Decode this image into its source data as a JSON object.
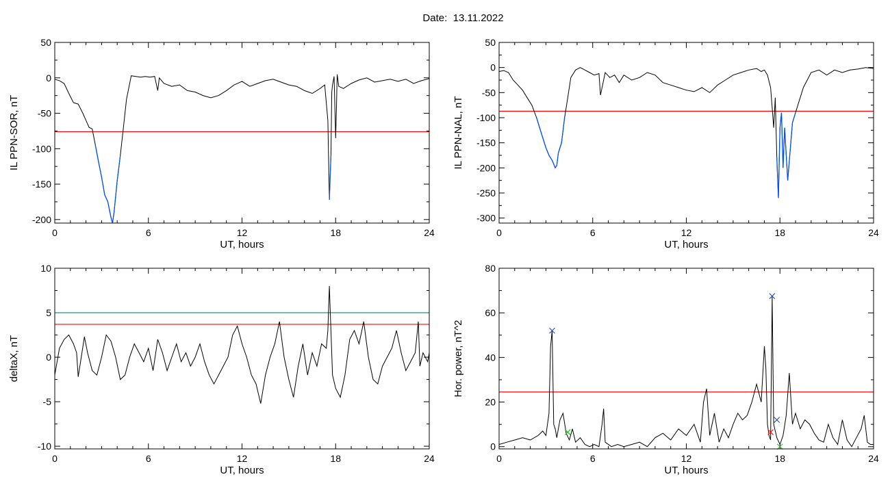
{
  "title": "Date:  13.11.2022",
  "chart_data": [
    {
      "type": "line",
      "xlabel": "UT, hours",
      "ylabel": "IL PPN-SOR, nT",
      "xlim": [
        0,
        24
      ],
      "ylim": [
        -205,
        50
      ],
      "xticks": [
        0,
        6,
        12,
        18,
        24
      ],
      "yticks": [
        50,
        0,
        -50,
        -100,
        -150,
        -200
      ],
      "threshold": {
        "value": -76,
        "color": "#ff0000"
      },
      "highlight": {
        "color": "#0050ff",
        "below": -76
      },
      "series": [
        {
          "color": "#000000",
          "x": [
            0,
            0.3,
            0.6,
            0.9,
            1.2,
            1.5,
            1.8,
            2.0,
            2.2,
            2.4,
            2.6,
            2.8,
            3.0,
            3.2,
            3.4,
            3.6,
            3.7,
            3.8,
            4.0,
            4.2,
            4.4,
            4.6,
            4.9,
            5.2,
            5.5,
            5.8,
            6.1,
            6.4,
            6.6,
            6.7,
            7.0,
            7.5,
            8.0,
            8.5,
            9.0,
            9.5,
            10.0,
            10.5,
            11.0,
            11.5,
            12.0,
            12.5,
            13.0,
            13.5,
            14.0,
            14.5,
            15.0,
            15.5,
            16.0,
            16.5,
            17.0,
            17.3,
            17.5,
            17.6,
            17.7,
            17.75,
            17.8,
            17.9,
            18.0,
            18.05,
            18.1,
            18.2,
            18.5,
            19.0,
            19.5,
            20.0,
            20.5,
            21.0,
            21.5,
            22.0,
            22.5,
            23.0,
            23.5,
            24.0
          ],
          "y": [
            -2,
            -4,
            -8,
            -22,
            -35,
            -37,
            -50,
            -60,
            -70,
            -72,
            -95,
            -118,
            -140,
            -165,
            -175,
            -197,
            -205,
            -190,
            -145,
            -110,
            -70,
            -30,
            3,
            2,
            1,
            2,
            1,
            2,
            -18,
            0,
            -8,
            -12,
            -10,
            -18,
            -20,
            -25,
            -28,
            -25,
            -18,
            -10,
            -5,
            -12,
            -8,
            -4,
            -2,
            -6,
            -10,
            -12,
            -18,
            -22,
            -15,
            -10,
            -60,
            -172,
            -110,
            -20,
            -10,
            2,
            -85,
            -45,
            5,
            -12,
            -15,
            -8,
            -3,
            0,
            -6,
            -4,
            -2,
            -5,
            -2,
            -8,
            -4,
            -1
          ]
        }
      ]
    },
    {
      "type": "line",
      "xlabel": "UT, hours",
      "ylabel": "IL PPN-NAL, nT",
      "xlim": [
        0,
        24
      ],
      "ylim": [
        -310,
        50
      ],
      "xticks": [
        0,
        6,
        12,
        18,
        24
      ],
      "yticks": [
        50,
        0,
        -50,
        -100,
        -150,
        -200,
        -250,
        -300
      ],
      "threshold": {
        "value": -87,
        "color": "#ff0000"
      },
      "highlight": {
        "color": "#0050ff",
        "below": -87
      },
      "series": [
        {
          "color": "#000000",
          "x": [
            0,
            0.3,
            0.6,
            0.9,
            1.2,
            1.5,
            1.8,
            2.1,
            2.4,
            2.7,
            3.0,
            3.2,
            3.4,
            3.6,
            3.7,
            3.8,
            4.0,
            4.2,
            4.4,
            4.6,
            4.9,
            5.2,
            5.5,
            5.8,
            6.1,
            6.4,
            6.5,
            6.8,
            7.1,
            7.4,
            7.7,
            8.0,
            8.5,
            9.0,
            9.5,
            10.0,
            10.5,
            11.0,
            11.5,
            12.0,
            12.5,
            13.0,
            13.5,
            14.0,
            14.5,
            15.0,
            15.5,
            16.0,
            16.5,
            16.8,
            17.0,
            17.2,
            17.4,
            17.5,
            17.6,
            17.7,
            17.8,
            17.9,
            18.0,
            18.1,
            18.2,
            18.3,
            18.5,
            18.8,
            19.0,
            19.5,
            20.0,
            20.5,
            21.0,
            21.5,
            22.0,
            22.5,
            23.0,
            23.5,
            24.0
          ],
          "y": [
            -8,
            -6,
            -10,
            -25,
            -35,
            -45,
            -60,
            -75,
            -100,
            -130,
            -160,
            -175,
            -185,
            -200,
            -195,
            -170,
            -150,
            -100,
            -60,
            -20,
            -5,
            0,
            -5,
            -10,
            -15,
            -12,
            -55,
            -10,
            -20,
            -15,
            -30,
            -15,
            -25,
            -20,
            -10,
            -15,
            -30,
            -35,
            -40,
            -45,
            -48,
            -40,
            -50,
            -35,
            -25,
            -15,
            -10,
            -5,
            -2,
            -8,
            -5,
            -15,
            -40,
            -80,
            -120,
            -60,
            -180,
            -260,
            -120,
            -90,
            -200,
            -120,
            -225,
            -110,
            -90,
            -40,
            -10,
            -5,
            -15,
            -5,
            -10,
            -5,
            -3,
            0,
            -2
          ]
        }
      ]
    },
    {
      "type": "line",
      "xlabel": "UT, hours",
      "ylabel": "deltaX, nT",
      "xlim": [
        0,
        24
      ],
      "ylim": [
        -10.3,
        10
      ],
      "xticks": [
        0,
        6,
        12,
        18,
        24
      ],
      "yticks": [
        10,
        5,
        0,
        -5,
        -10
      ],
      "hlines": [
        {
          "value": 5,
          "color": "#2a8b8b"
        },
        {
          "value": 3.7,
          "color": "#ff0000"
        }
      ],
      "series": [
        {
          "color": "#000000",
          "x": [
            0,
            0.3,
            0.6,
            0.9,
            1.2,
            1.4,
            1.5,
            1.7,
            1.9,
            2.1,
            2.4,
            2.7,
            3.0,
            3.3,
            3.6,
            3.9,
            4.2,
            4.5,
            4.8,
            5.1,
            5.4,
            5.7,
            6.0,
            6.3,
            6.6,
            6.9,
            7.2,
            7.5,
            7.8,
            8.1,
            8.4,
            8.7,
            9.0,
            9.3,
            9.6,
            9.9,
            10.2,
            10.5,
            10.8,
            11.1,
            11.4,
            11.7,
            12.0,
            12.3,
            12.6,
            12.9,
            13.2,
            13.5,
            13.8,
            14.1,
            14.4,
            14.7,
            15.0,
            15.3,
            15.6,
            15.9,
            16.2,
            16.5,
            16.8,
            17.1,
            17.4,
            17.5,
            17.6,
            17.8,
            18.0,
            18.3,
            18.6,
            18.9,
            19.2,
            19.5,
            19.8,
            20.1,
            20.4,
            20.7,
            21.0,
            21.3,
            21.6,
            21.9,
            22.2,
            22.5,
            22.8,
            23.1,
            23.3,
            23.4,
            23.6,
            23.9,
            24.0
          ],
          "y": [
            -2.0,
            1.0,
            2.0,
            2.5,
            1.5,
            0.5,
            -2.2,
            0.0,
            2.3,
            0.5,
            -1.5,
            -2.0,
            0.0,
            2.5,
            1.8,
            0.0,
            -2.5,
            -2.0,
            0.0,
            1.5,
            0.5,
            -0.5,
            1.0,
            -1.5,
            2.0,
            0.5,
            -1.5,
            0.0,
            1.5,
            -0.5,
            0.5,
            -1.0,
            0.0,
            1.5,
            -0.5,
            -2.0,
            -3.0,
            -2.0,
            -1.0,
            0.0,
            2.5,
            3.5,
            1.5,
            0.0,
            -2.0,
            -3.0,
            -5.2,
            -2.0,
            0.0,
            1.5,
            4.0,
            0.0,
            -2.5,
            -4.5,
            -1.0,
            1.5,
            -2.0,
            0.5,
            -1.0,
            1.5,
            1.0,
            3.0,
            8.0,
            -2.0,
            -3.5,
            -4.5,
            -2.0,
            2.0,
            3.0,
            1.5,
            4.0,
            0.0,
            -2.5,
            -3.0,
            -1.0,
            0.0,
            1.0,
            3.0,
            0.5,
            -1.5,
            -0.5,
            0.5,
            4.0,
            -1.0,
            0.5,
            -0.5,
            0.5
          ]
        }
      ]
    },
    {
      "type": "line",
      "xlabel": "UT, hours",
      "ylabel": "Hor. power, nT^2",
      "xlim": [
        0,
        24
      ],
      "ylim": [
        -1,
        80
      ],
      "xticks": [
        0,
        6,
        12,
        18,
        24
      ],
      "yticks": [
        80,
        60,
        40,
        20,
        0
      ],
      "threshold": {
        "value": 24.5,
        "color": "#ff0000"
      },
      "markers": [
        {
          "x": 3.4,
          "y": 52,
          "color": "#1f50c8"
        },
        {
          "x": 4.4,
          "y": 6.5,
          "color": "#2fb82f"
        },
        {
          "x": 17.5,
          "y": 67.5,
          "color": "#1f50c8"
        },
        {
          "x": 17.4,
          "y": 6.5,
          "color": "#e02020"
        },
        {
          "x": 17.8,
          "y": 12,
          "color": "#1f50c8"
        },
        {
          "x": 18.0,
          "y": 0,
          "color": "#2fb82f"
        }
      ],
      "series": [
        {
          "color": "#000000",
          "x": [
            0,
            0.5,
            1.0,
            1.5,
            2.0,
            2.5,
            2.8,
            3.0,
            3.2,
            3.3,
            3.4,
            3.5,
            3.6,
            3.7,
            3.9,
            4.1,
            4.3,
            4.5,
            4.7,
            4.9,
            5.2,
            5.5,
            5.8,
            6.1,
            6.4,
            6.6,
            6.7,
            6.8,
            7.2,
            7.6,
            8.0,
            8.5,
            9.0,
            9.5,
            10.0,
            10.5,
            11.0,
            11.5,
            12.0,
            12.5,
            12.9,
            13.1,
            13.3,
            13.5,
            13.8,
            14.1,
            14.4,
            14.7,
            15.0,
            15.3,
            15.6,
            15.9,
            16.2,
            16.5,
            16.8,
            17.0,
            17.1,
            17.2,
            17.3,
            17.4,
            17.5,
            17.6,
            17.8,
            18.0,
            18.2,
            18.4,
            18.6,
            18.8,
            19.0,
            19.3,
            19.6,
            19.9,
            20.2,
            20.5,
            20.8,
            21.1,
            21.4,
            21.7,
            22.0,
            22.3,
            22.6,
            22.9,
            23.2,
            23.4,
            23.6,
            23.8,
            24.0
          ],
          "y": [
            1,
            2,
            3,
            4,
            3,
            5,
            7,
            5,
            15,
            45,
            52,
            10,
            8,
            4,
            12,
            15,
            6,
            3,
            8,
            2,
            4,
            1,
            0,
            1,
            0,
            10,
            17,
            2,
            0,
            1,
            0,
            1,
            2,
            0,
            4,
            6,
            3,
            8,
            5,
            10,
            2,
            20,
            26,
            5,
            15,
            2,
            8,
            4,
            10,
            15,
            12,
            14,
            20,
            28,
            20,
            45,
            35,
            10,
            5,
            3,
            67.5,
            10,
            4,
            1,
            5,
            14,
            33,
            10,
            15,
            8,
            12,
            10,
            6,
            3,
            2,
            10,
            4,
            1,
            12,
            3,
            0,
            4,
            8,
            14,
            2,
            1,
            1
          ]
        }
      ]
    }
  ]
}
